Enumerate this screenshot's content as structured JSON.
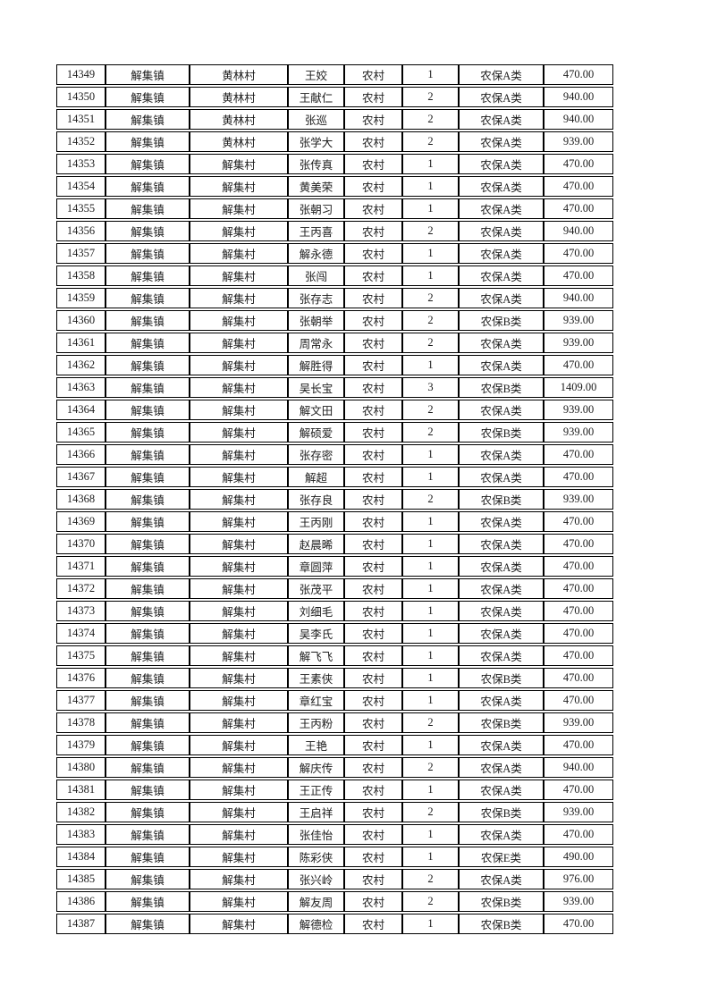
{
  "page": {
    "background": "#ffffff",
    "border_color": "#000000",
    "text_color": "#1c1c1c"
  },
  "table": {
    "column_keys": [
      "record-no",
      "town",
      "village",
      "name",
      "residence-type",
      "person-count",
      "insurance-type",
      "amount"
    ],
    "rows": [
      [
        "14349",
        "解集镇",
        "黄林村",
        "王姣",
        "农村",
        "1",
        "农保A类",
        "470.00"
      ],
      [
        "14350",
        "解集镇",
        "黄林村",
        "王献仁",
        "农村",
        "2",
        "农保A类",
        "940.00"
      ],
      [
        "14351",
        "解集镇",
        "黄林村",
        "张巡",
        "农村",
        "2",
        "农保A类",
        "940.00"
      ],
      [
        "14352",
        "解集镇",
        "黄林村",
        "张学大",
        "农村",
        "2",
        "农保A类",
        "939.00"
      ],
      [
        "14353",
        "解集镇",
        "解集村",
        "张传真",
        "农村",
        "1",
        "农保A类",
        "470.00"
      ],
      [
        "14354",
        "解集镇",
        "解集村",
        "黄美荣",
        "农村",
        "1",
        "农保A类",
        "470.00"
      ],
      [
        "14355",
        "解集镇",
        "解集村",
        "张朝习",
        "农村",
        "1",
        "农保A类",
        "470.00"
      ],
      [
        "14356",
        "解集镇",
        "解集村",
        "王丙喜",
        "农村",
        "2",
        "农保A类",
        "940.00"
      ],
      [
        "14357",
        "解集镇",
        "解集村",
        "解永德",
        "农村",
        "1",
        "农保A类",
        "470.00"
      ],
      [
        "14358",
        "解集镇",
        "解集村",
        "张闯",
        "农村",
        "1",
        "农保A类",
        "470.00"
      ],
      [
        "14359",
        "解集镇",
        "解集村",
        "张存志",
        "农村",
        "2",
        "农保A类",
        "940.00"
      ],
      [
        "14360",
        "解集镇",
        "解集村",
        "张朝举",
        "农村",
        "2",
        "农保B类",
        "939.00"
      ],
      [
        "14361",
        "解集镇",
        "解集村",
        "周常永",
        "农村",
        "2",
        "农保A类",
        "939.00"
      ],
      [
        "14362",
        "解集镇",
        "解集村",
        "解胜得",
        "农村",
        "1",
        "农保A类",
        "470.00"
      ],
      [
        "14363",
        "解集镇",
        "解集村",
        "吴长宝",
        "农村",
        "3",
        "农保B类",
        "1409.00"
      ],
      [
        "14364",
        "解集镇",
        "解集村",
        "解文田",
        "农村",
        "2",
        "农保A类",
        "939.00"
      ],
      [
        "14365",
        "解集镇",
        "解集村",
        "解硕爱",
        "农村",
        "2",
        "农保B类",
        "939.00"
      ],
      [
        "14366",
        "解集镇",
        "解集村",
        "张存密",
        "农村",
        "1",
        "农保A类",
        "470.00"
      ],
      [
        "14367",
        "解集镇",
        "解集村",
        "解超",
        "农村",
        "1",
        "农保A类",
        "470.00"
      ],
      [
        "14368",
        "解集镇",
        "解集村",
        "张存良",
        "农村",
        "2",
        "农保B类",
        "939.00"
      ],
      [
        "14369",
        "解集镇",
        "解集村",
        "王丙刚",
        "农村",
        "1",
        "农保A类",
        "470.00"
      ],
      [
        "14370",
        "解集镇",
        "解集村",
        "赵晨晞",
        "农村",
        "1",
        "农保A类",
        "470.00"
      ],
      [
        "14371",
        "解集镇",
        "解集村",
        "章圆萍",
        "农村",
        "1",
        "农保A类",
        "470.00"
      ],
      [
        "14372",
        "解集镇",
        "解集村",
        "张茂平",
        "农村",
        "1",
        "农保A类",
        "470.00"
      ],
      [
        "14373",
        "解集镇",
        "解集村",
        "刘细毛",
        "农村",
        "1",
        "农保A类",
        "470.00"
      ],
      [
        "14374",
        "解集镇",
        "解集村",
        "吴李氏",
        "农村",
        "1",
        "农保A类",
        "470.00"
      ],
      [
        "14375",
        "解集镇",
        "解集村",
        "解飞飞",
        "农村",
        "1",
        "农保A类",
        "470.00"
      ],
      [
        "14376",
        "解集镇",
        "解集村",
        "王素侠",
        "农村",
        "1",
        "农保B类",
        "470.00"
      ],
      [
        "14377",
        "解集镇",
        "解集村",
        "章红宝",
        "农村",
        "1",
        "农保A类",
        "470.00"
      ],
      [
        "14378",
        "解集镇",
        "解集村",
        "王丙粉",
        "农村",
        "2",
        "农保B类",
        "939.00"
      ],
      [
        "14379",
        "解集镇",
        "解集村",
        "王艳",
        "农村",
        "1",
        "农保A类",
        "470.00"
      ],
      [
        "14380",
        "解集镇",
        "解集村",
        "解庆传",
        "农村",
        "2",
        "农保A类",
        "940.00"
      ],
      [
        "14381",
        "解集镇",
        "解集村",
        "王正传",
        "农村",
        "1",
        "农保A类",
        "470.00"
      ],
      [
        "14382",
        "解集镇",
        "解集村",
        "王启祥",
        "农村",
        "2",
        "农保B类",
        "939.00"
      ],
      [
        "14383",
        "解集镇",
        "解集村",
        "张佳怡",
        "农村",
        "1",
        "农保A类",
        "470.00"
      ],
      [
        "14384",
        "解集镇",
        "解集村",
        "陈彩侠",
        "农村",
        "1",
        "农保E类",
        "490.00"
      ],
      [
        "14385",
        "解集镇",
        "解集村",
        "张兴岭",
        "农村",
        "2",
        "农保A类",
        "976.00"
      ],
      [
        "14386",
        "解集镇",
        "解集村",
        "解友周",
        "农村",
        "2",
        "农保B类",
        "939.00"
      ],
      [
        "14387",
        "解集镇",
        "解集村",
        "解德检",
        "农村",
        "1",
        "农保B类",
        "470.00"
      ]
    ]
  }
}
